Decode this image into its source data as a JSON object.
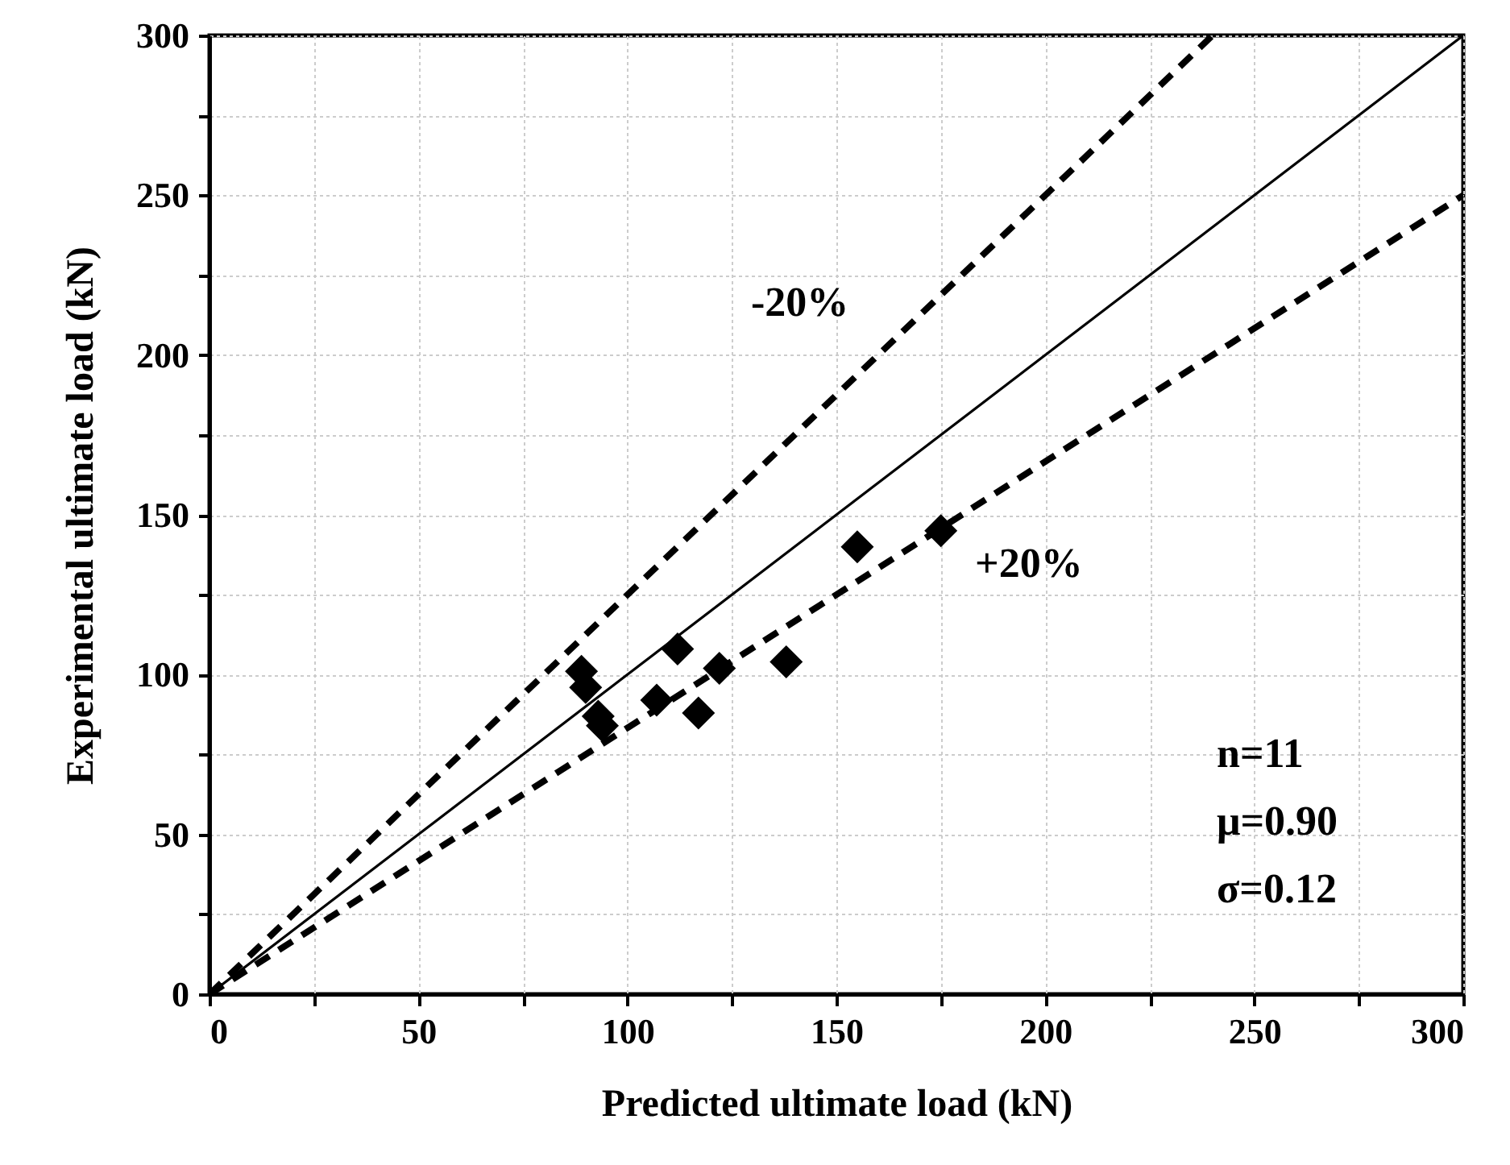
{
  "chart_data": {
    "type": "scatter",
    "xlabel": "Predicted ultimate load (kN)",
    "ylabel": "Experimental ultimate load (kN)",
    "xlim": [
      0,
      300
    ],
    "ylim": [
      0,
      300
    ],
    "xticks": [
      0,
      {
        "value": 25,
        "label": null
      },
      50,
      {
        "value": 75,
        "label": null
      },
      100,
      {
        "value": 125,
        "label": null
      },
      150,
      {
        "value": 175,
        "label": null
      },
      200,
      {
        "value": 225,
        "label": null
      },
      250,
      {
        "value": 275,
        "label": null
      },
      300
    ],
    "yticks": [
      0,
      {
        "value": 25,
        "label": null
      },
      50,
      {
        "value": 75,
        "label": null
      },
      100,
      {
        "value": 125,
        "label": null
      },
      150,
      {
        "value": 175,
        "label": null
      },
      200,
      {
        "value": 225,
        "label": null
      },
      250,
      {
        "value": 275,
        "label": null
      },
      300
    ],
    "grid": true,
    "series": [
      {
        "type": "line",
        "color": "#000000",
        "line_style": "solid",
        "marker": "none",
        "x": [
          0,
          300
        ],
        "values": [
          0,
          300
        ]
      },
      {
        "type": "line",
        "color": "#000000",
        "line_style": "dashed",
        "marker": "none",
        "x": [
          0,
          240
        ],
        "values": [
          0,
          300
        ]
      },
      {
        "type": "line",
        "color": "#000000",
        "line_style": "dashed",
        "marker": "none",
        "x": [
          0,
          300
        ],
        "values": [
          0,
          250
        ]
      },
      {
        "color": "#000000",
        "marker": "diamond",
        "x": [
          89,
          90,
          93,
          94,
          107,
          112,
          117,
          122,
          138,
          155,
          175
        ],
        "values": [
          101,
          96,
          87,
          84,
          92,
          108,
          88,
          102,
          104,
          140,
          145
        ]
      }
    ],
    "annotations": [
      "-20%",
      "+20%",
      "n=11",
      "μ=0.90",
      "σ=0.12"
    ]
  }
}
